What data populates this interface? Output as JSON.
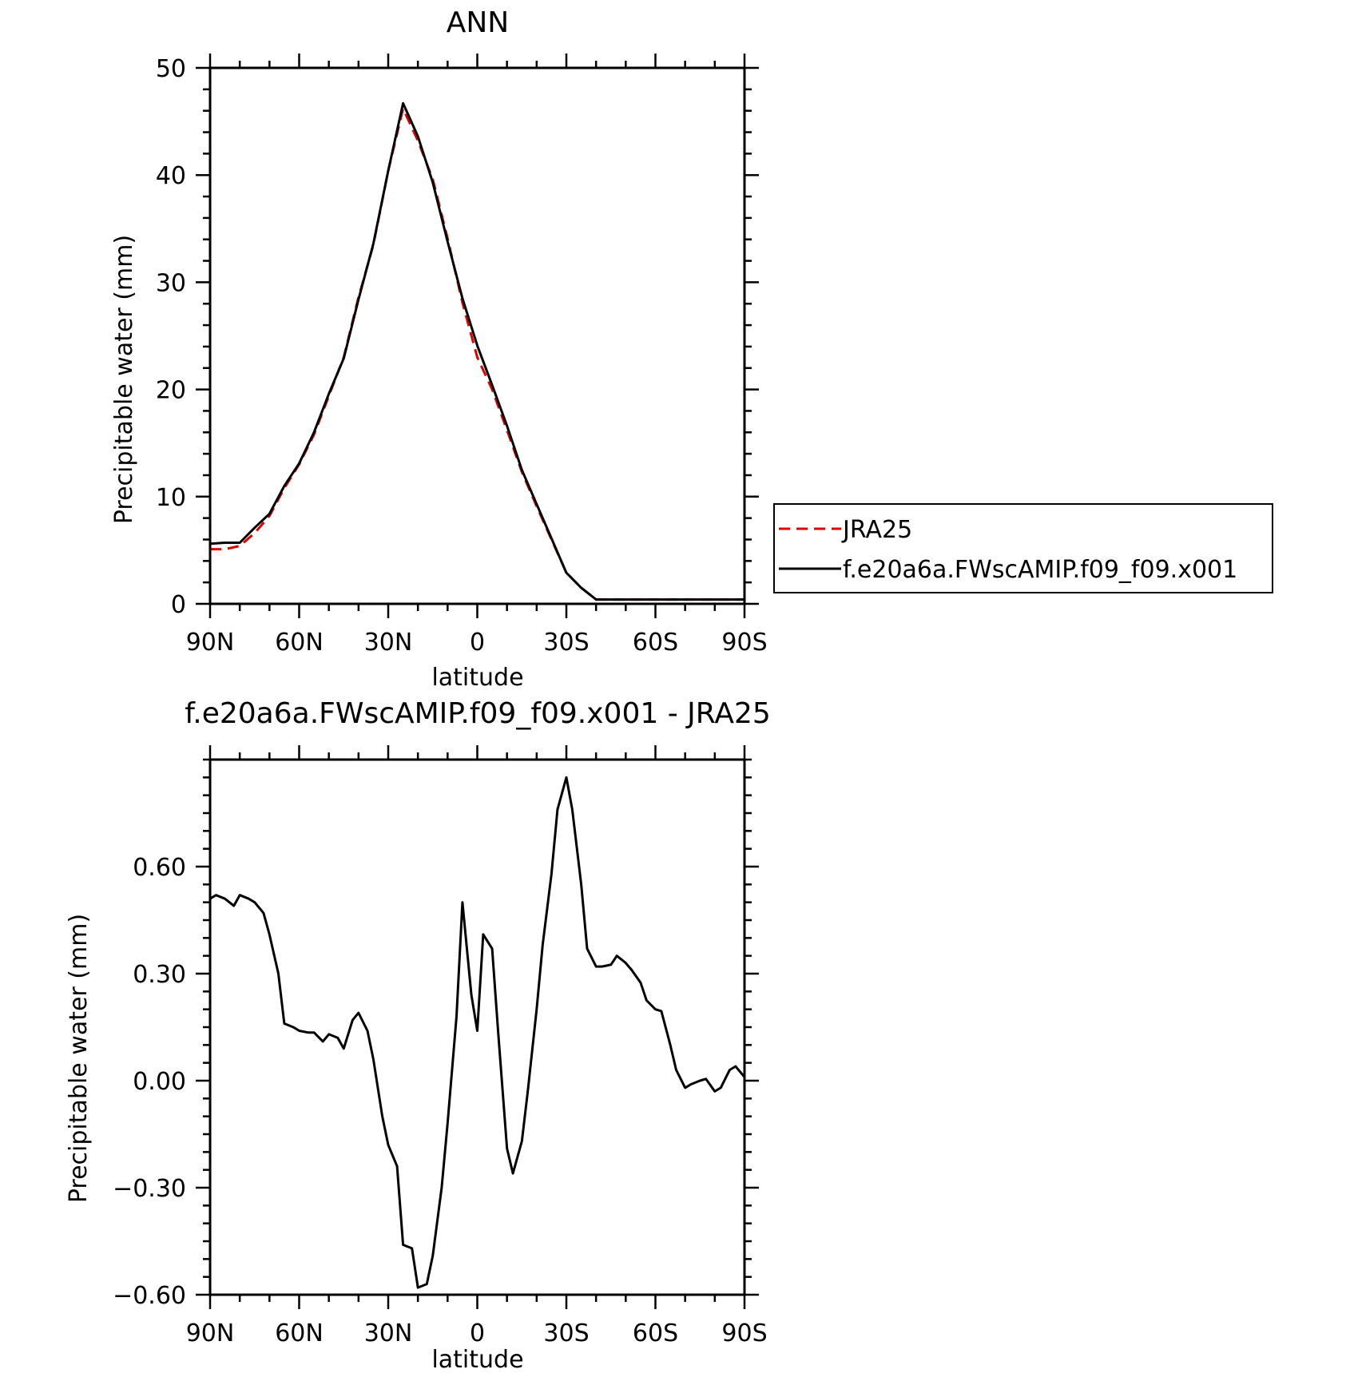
{
  "chart_data": [
    {
      "type": "line",
      "title": "ANN",
      "xlabel": "latitude",
      "ylabel": "Precipitable water (mm)",
      "xlim": [
        90,
        -90
      ],
      "ylim": [
        0,
        50
      ],
      "x_ticks": [
        90,
        60,
        30,
        0,
        -30,
        -60,
        -90
      ],
      "x_tick_labels": [
        "90N",
        "60N",
        "30N",
        "0",
        "30S",
        "60S",
        "90S"
      ],
      "y_ticks": [
        0,
        10,
        20,
        30,
        40,
        50
      ],
      "y_tick_labels": [
        "0",
        "10",
        "20",
        "30",
        "40",
        "50"
      ],
      "grid": false,
      "legend_position": "right",
      "x": [
        90,
        85,
        80,
        75,
        70,
        65,
        60,
        55,
        50,
        45,
        40,
        35,
        30,
        25,
        20,
        15,
        10,
        5,
        0,
        -5,
        -10,
        -15,
        -20,
        -25,
        -30,
        -35,
        -40,
        -45,
        -50,
        -55,
        -60,
        -65,
        -70,
        -75,
        -80,
        -85,
        -90
      ],
      "series": [
        {
          "name": "JRA25",
          "color": "#e00000",
          "dash": "dashed",
          "values": [
            5.1,
            5.1,
            5.4,
            6.6,
            8.2,
            10.8,
            13.0,
            15.8,
            19.4,
            23.0,
            28.6,
            33.5,
            40.4,
            46.2,
            43.2,
            39.6,
            34.1,
            28.1,
            23.0,
            20.0,
            16.2,
            12.3,
            9.1,
            6.0,
            2.9,
            1.5,
            0.4,
            0.4,
            0.4,
            0.4,
            0.4,
            0.4,
            0.4,
            0.4,
            0.4,
            0.4,
            0.4
          ]
        },
        {
          "name": "f.e20a6a.FWscAMIP.f09_f09.x001",
          "color": "#000000",
          "dash": "solid",
          "values": [
            5.6,
            5.7,
            5.7,
            7.1,
            8.4,
            11.0,
            13.1,
            16.0,
            19.6,
            22.9,
            28.4,
            33.6,
            40.4,
            46.7,
            43.6,
            39.3,
            33.8,
            28.5,
            24.1,
            20.4,
            16.6,
            12.5,
            9.3,
            6.1,
            2.9,
            1.5,
            0.4,
            0.4,
            0.4,
            0.4,
            0.4,
            0.4,
            0.4,
            0.4,
            0.4,
            0.4,
            0.4
          ]
        }
      ]
    },
    {
      "type": "line",
      "title": "f.e20a6a.FWscAMIP.f09_f09.x001 - JRA25",
      "xlabel": "latitude",
      "ylabel": "Precipitable water (mm)",
      "xlim": [
        90,
        -90
      ],
      "ylim": [
        -0.6,
        0.9
      ],
      "x_ticks": [
        90,
        60,
        30,
        0,
        -30,
        -60,
        -90
      ],
      "x_tick_labels": [
        "90N",
        "60N",
        "30N",
        "0",
        "30S",
        "60S",
        "90S"
      ],
      "y_ticks": [
        -0.6,
        -0.3,
        0.0,
        0.3,
        0.6
      ],
      "y_tick_labels": [
        "−0.60",
        "−0.30",
        "0.00",
        "0.30",
        "0.60"
      ],
      "grid": false,
      "x": [
        90,
        88,
        85,
        82,
        80,
        77,
        75,
        72,
        70,
        67,
        65,
        62,
        60,
        57,
        55,
        52,
        50,
        47,
        45,
        42,
        40,
        37,
        35,
        32,
        30,
        27,
        25,
        22,
        20,
        17,
        15,
        12,
        10,
        7,
        5,
        2,
        0,
        -2,
        -5,
        -7,
        -10,
        -12,
        -15,
        -17,
        -20,
        -22,
        -25,
        -27,
        -30,
        -32,
        -35,
        -37,
        -40,
        -42,
        -45,
        -47,
        -50,
        -52,
        -55,
        -57,
        -60,
        -62,
        -65,
        -67,
        -70,
        -72,
        -75,
        -77,
        -80,
        -82,
        -85,
        -87,
        -90
      ],
      "values": [
        0.51,
        0.52,
        0.51,
        0.49,
        0.52,
        0.51,
        0.5,
        0.47,
        0.41,
        0.3,
        0.16,
        0.15,
        0.14,
        0.135,
        0.135,
        0.11,
        0.13,
        0.12,
        0.09,
        0.17,
        0.19,
        0.14,
        0.06,
        -0.1,
        -0.18,
        -0.24,
        -0.46,
        -0.47,
        -0.58,
        -0.57,
        -0.49,
        -0.3,
        -0.12,
        0.18,
        0.5,
        0.24,
        0.14,
        0.41,
        0.37,
        0.14,
        -0.19,
        -0.26,
        -0.17,
        -0.03,
        0.2,
        0.38,
        0.58,
        0.76,
        0.85,
        0.76,
        0.55,
        0.37,
        0.32,
        0.32,
        0.325,
        0.35,
        0.33,
        0.31,
        0.275,
        0.225,
        0.2,
        0.195,
        0.1,
        0.03,
        -0.02,
        -0.01,
        0.0,
        0.005,
        -0.03,
        -0.02,
        0.03,
        0.04,
        0.01
      ]
    }
  ]
}
